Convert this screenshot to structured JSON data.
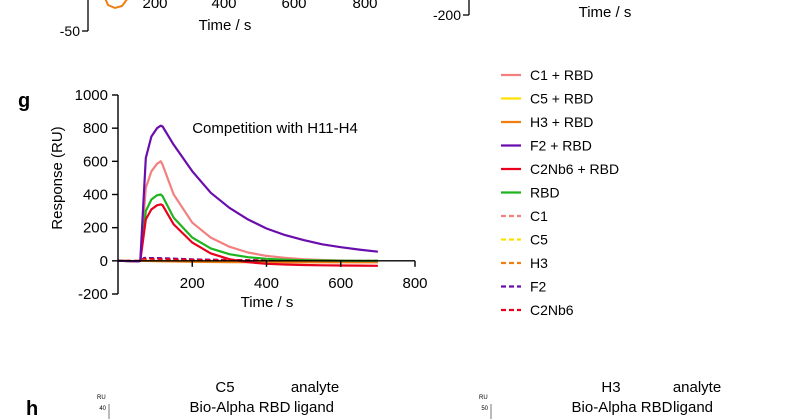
{
  "top_fragment": {
    "left_x_ticks": [
      "200",
      "400",
      "600",
      "800"
    ],
    "left_y_tick": "-50",
    "left_xlabel": "Time / s",
    "right_y_tick": "-200",
    "right_xlabel": "Time / s",
    "left_trace_color": "#f07f12"
  },
  "panel_g": {
    "letter": "g",
    "annotation": "Competition with H11-H4"
  },
  "panel_h": {
    "letter": "h",
    "left": {
      "analyte": "C5",
      "analyte_role": "analyte",
      "ligand": "Bio-Alpha RBD",
      "ligand_role": "ligand",
      "unit": "RU",
      "tick": "40"
    },
    "right": {
      "analyte": "H3",
      "analyte_role": "analyte",
      "ligand": "Bio-Alpha RBD",
      "ligand_role": "ligand",
      "unit": "RU",
      "tick": "50"
    }
  },
  "chart_data": {
    "type": "line",
    "title": "",
    "xlabel": "Time / s",
    "ylabel": "Response (RU)",
    "xlim": [
      0,
      800
    ],
    "ylim": [
      -200,
      1000
    ],
    "x_ticks": [
      200,
      400,
      600,
      800
    ],
    "y_ticks": [
      -200,
      0,
      200,
      400,
      600,
      800,
      1000
    ],
    "grid": false,
    "legend_position": "right",
    "series": [
      {
        "name": "C1 + RBD",
        "color": "#f28080",
        "style": "solid",
        "points": [
          [
            0,
            0
          ],
          [
            55,
            -3
          ],
          [
            60,
            0
          ],
          [
            75,
            440
          ],
          [
            90,
            540
          ],
          [
            105,
            585
          ],
          [
            115,
            600
          ],
          [
            120,
            580
          ],
          [
            150,
            400
          ],
          [
            200,
            230
          ],
          [
            250,
            140
          ],
          [
            300,
            85
          ],
          [
            350,
            50
          ],
          [
            400,
            30
          ],
          [
            450,
            18
          ],
          [
            500,
            10
          ],
          [
            550,
            5
          ],
          [
            600,
            2
          ],
          [
            650,
            0
          ],
          [
            700,
            -1
          ]
        ]
      },
      {
        "name": "C5 + RBD",
        "color": "#ffe100",
        "style": "solid",
        "points": [
          [
            0,
            0
          ],
          [
            55,
            -2
          ],
          [
            60,
            0
          ],
          [
            120,
            -2
          ],
          [
            200,
            -4
          ],
          [
            300,
            -5
          ],
          [
            400,
            -5
          ],
          [
            500,
            -5
          ],
          [
            600,
            -5
          ],
          [
            700,
            -5
          ]
        ]
      },
      {
        "name": "H3 + RBD",
        "color": "#f07f12",
        "style": "solid",
        "points": [
          [
            0,
            0
          ],
          [
            55,
            -2
          ],
          [
            60,
            0
          ],
          [
            120,
            -3
          ],
          [
            200,
            -6
          ],
          [
            300,
            -8
          ],
          [
            400,
            -8
          ],
          [
            500,
            -9
          ],
          [
            600,
            -9
          ],
          [
            700,
            -9
          ]
        ]
      },
      {
        "name": "F2 + RBD",
        "color": "#6a0dad",
        "style": "solid",
        "points": [
          [
            0,
            0
          ],
          [
            55,
            -3
          ],
          [
            60,
            0
          ],
          [
            75,
            620
          ],
          [
            90,
            750
          ],
          [
            105,
            800
          ],
          [
            115,
            815
          ],
          [
            120,
            810
          ],
          [
            150,
            700
          ],
          [
            200,
            540
          ],
          [
            250,
            410
          ],
          [
            300,
            320
          ],
          [
            350,
            250
          ],
          [
            400,
            195
          ],
          [
            450,
            155
          ],
          [
            500,
            125
          ],
          [
            550,
            100
          ],
          [
            600,
            82
          ],
          [
            650,
            68
          ],
          [
            700,
            55
          ]
        ]
      },
      {
        "name": "C2Nb6 + RBD",
        "color": "#e8001c",
        "style": "solid",
        "points": [
          [
            0,
            0
          ],
          [
            55,
            -3
          ],
          [
            60,
            0
          ],
          [
            75,
            250
          ],
          [
            90,
            310
          ],
          [
            105,
            335
          ],
          [
            115,
            340
          ],
          [
            120,
            335
          ],
          [
            150,
            220
          ],
          [
            200,
            110
          ],
          [
            250,
            45
          ],
          [
            300,
            10
          ],
          [
            350,
            -8
          ],
          [
            400,
            -18
          ],
          [
            450,
            -22
          ],
          [
            500,
            -25
          ],
          [
            550,
            -27
          ],
          [
            600,
            -28
          ],
          [
            650,
            -29
          ],
          [
            700,
            -30
          ]
        ]
      },
      {
        "name": "RBD",
        "color": "#1eb41e",
        "style": "solid",
        "points": [
          [
            0,
            0
          ],
          [
            55,
            -3
          ],
          [
            60,
            0
          ],
          [
            75,
            300
          ],
          [
            90,
            370
          ],
          [
            105,
            395
          ],
          [
            115,
            400
          ],
          [
            120,
            390
          ],
          [
            150,
            260
          ],
          [
            200,
            140
          ],
          [
            250,
            75
          ],
          [
            300,
            40
          ],
          [
            350,
            22
          ],
          [
            400,
            12
          ],
          [
            450,
            7
          ],
          [
            500,
            4
          ],
          [
            550,
            2
          ],
          [
            600,
            1
          ],
          [
            650,
            0
          ],
          [
            700,
            0
          ]
        ]
      },
      {
        "name": "C1",
        "color": "#f28080",
        "style": "dashed",
        "points": [
          [
            0,
            0
          ],
          [
            60,
            0
          ],
          [
            70,
            15
          ],
          [
            120,
            14
          ],
          [
            200,
            8
          ],
          [
            300,
            5
          ],
          [
            400,
            3
          ],
          [
            500,
            2
          ],
          [
            600,
            1
          ],
          [
            700,
            0
          ]
        ]
      },
      {
        "name": "C5",
        "color": "#ffe100",
        "style": "dashed",
        "points": [
          [
            0,
            0
          ],
          [
            60,
            0
          ],
          [
            70,
            5
          ],
          [
            120,
            5
          ],
          [
            200,
            3
          ],
          [
            300,
            2
          ],
          [
            400,
            1
          ],
          [
            500,
            0
          ],
          [
            600,
            0
          ],
          [
            700,
            0
          ]
        ]
      },
      {
        "name": "H3",
        "color": "#f07f12",
        "style": "dashed",
        "points": [
          [
            0,
            0
          ],
          [
            60,
            0
          ],
          [
            70,
            8
          ],
          [
            120,
            8
          ],
          [
            200,
            5
          ],
          [
            300,
            3
          ],
          [
            400,
            2
          ],
          [
            500,
            1
          ],
          [
            600,
            0
          ],
          [
            700,
            0
          ]
        ]
      },
      {
        "name": "F2",
        "color": "#6a0dad",
        "style": "dashed",
        "points": [
          [
            0,
            0
          ],
          [
            60,
            0
          ],
          [
            70,
            18
          ],
          [
            120,
            17
          ],
          [
            200,
            10
          ],
          [
            300,
            6
          ],
          [
            400,
            4
          ],
          [
            500,
            2
          ],
          [
            600,
            1
          ],
          [
            700,
            0
          ]
        ]
      },
      {
        "name": "C2Nb6",
        "color": "#e8001c",
        "style": "dashed",
        "points": [
          [
            0,
            0
          ],
          [
            60,
            0
          ],
          [
            70,
            12
          ],
          [
            120,
            11
          ],
          [
            200,
            7
          ],
          [
            300,
            4
          ],
          [
            400,
            2
          ],
          [
            500,
            1
          ],
          [
            600,
            0
          ],
          [
            700,
            0
          ]
        ]
      }
    ]
  }
}
